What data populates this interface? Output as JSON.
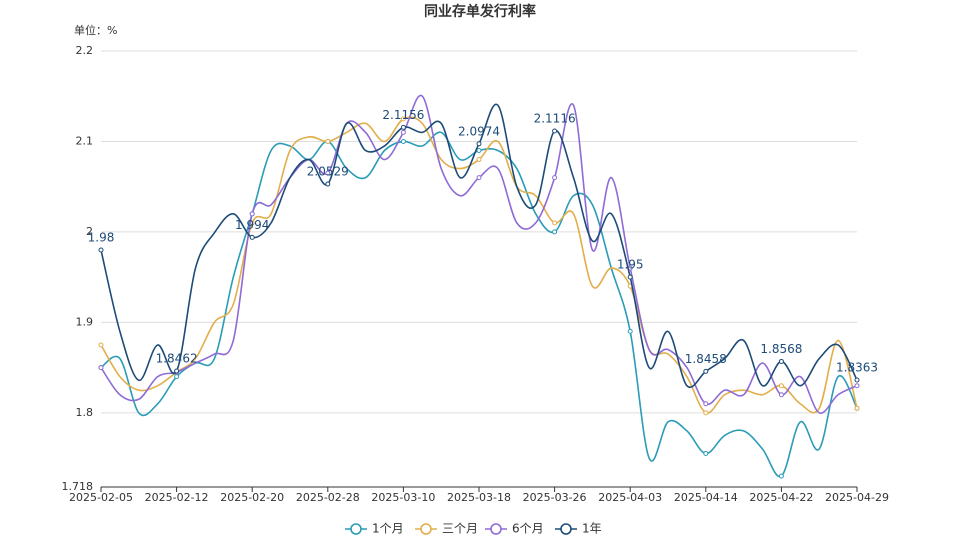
{
  "chart_data": {
    "type": "line",
    "title": "同业存单发行利率",
    "y_axis_label": "单位：%",
    "categories": [
      "2025-02-05",
      null,
      null,
      null,
      "2025-02-12",
      null,
      null,
      null,
      "2025-02-20",
      null,
      null,
      null,
      "2025-02-28",
      null,
      null,
      null,
      "2025-03-10",
      null,
      null,
      null,
      "2025-03-18",
      null,
      null,
      null,
      "2025-03-26",
      null,
      null,
      null,
      "2025-04-03",
      null,
      null,
      null,
      "2025-04-14",
      null,
      null,
      null,
      "2025-04-22",
      null,
      null,
      null,
      "2025-04-29"
    ],
    "series": [
      {
        "name": "1个月",
        "color": "#2a9cb8",
        "values": [
          1.85,
          1.86,
          1.8,
          1.81,
          1.84,
          1.855,
          1.86,
          1.95,
          2.02,
          2.09,
          2.095,
          2.08,
          2.1,
          2.07,
          2.06,
          2.09,
          2.1,
          2.095,
          2.11,
          2.08,
          2.09,
          2.09,
          2.07,
          2.02,
          2.0,
          2.04,
          2.03,
          1.96,
          1.89,
          1.75,
          1.79,
          1.78,
          1.755,
          1.775,
          1.78,
          1.76,
          1.73,
          1.79,
          1.76,
          1.84,
          1.805
        ]
      },
      {
        "name": "三个月",
        "color": "#e2ae4a",
        "values": [
          1.875,
          1.84,
          1.825,
          1.83,
          1.845,
          1.86,
          1.9,
          1.92,
          2.01,
          2.02,
          2.09,
          2.105,
          2.1,
          2.11,
          2.12,
          2.1,
          2.125,
          2.12,
          2.08,
          2.07,
          2.08,
          2.1,
          2.05,
          2.04,
          2.01,
          2.02,
          1.94,
          1.96,
          1.94,
          1.87,
          1.865,
          1.84,
          1.8,
          1.82,
          1.825,
          1.82,
          1.83,
          1.81,
          1.805,
          1.88,
          1.805
        ]
      },
      {
        "name": "6个月",
        "color": "#8e6bd6",
        "values": [
          1.85,
          1.82,
          1.815,
          1.84,
          1.845,
          1.855,
          1.865,
          1.88,
          2.02,
          2.03,
          2.06,
          2.08,
          2.065,
          2.12,
          2.11,
          2.08,
          2.11,
          2.15,
          2.07,
          2.04,
          2.06,
          2.07,
          2.01,
          2.01,
          2.06,
          2.14,
          1.98,
          2.06,
          1.96,
          1.87,
          1.87,
          1.85,
          1.81,
          1.825,
          1.82,
          1.855,
          1.82,
          1.84,
          1.8,
          1.82,
          1.83
        ]
      },
      {
        "name": "1年",
        "color": "#1d4b78",
        "data_labels": true,
        "values": [
          1.98,
          1.89,
          1.836,
          1.875,
          1.8462,
          1.96,
          1.999,
          2.02,
          1.994,
          2.01,
          2.06,
          2.08,
          2.0529,
          2.12,
          2.09,
          2.095,
          2.1156,
          2.11,
          2.12,
          2.06,
          2.0974,
          2.14,
          2.05,
          2.03,
          2.1116,
          2.06,
          1.99,
          2.02,
          1.95,
          1.85,
          1.89,
          1.83,
          1.8458,
          1.86,
          1.88,
          1.83,
          1.8568,
          1.83,
          1.86,
          1.875,
          1.8363
        ]
      }
    ],
    "ylim": [
      1.718,
      2.2
    ],
    "yticks": [
      1.718,
      1.8,
      1.9,
      2,
      2.1,
      2.2
    ],
    "grid": true,
    "smooth": true,
    "legend": "bottom"
  }
}
